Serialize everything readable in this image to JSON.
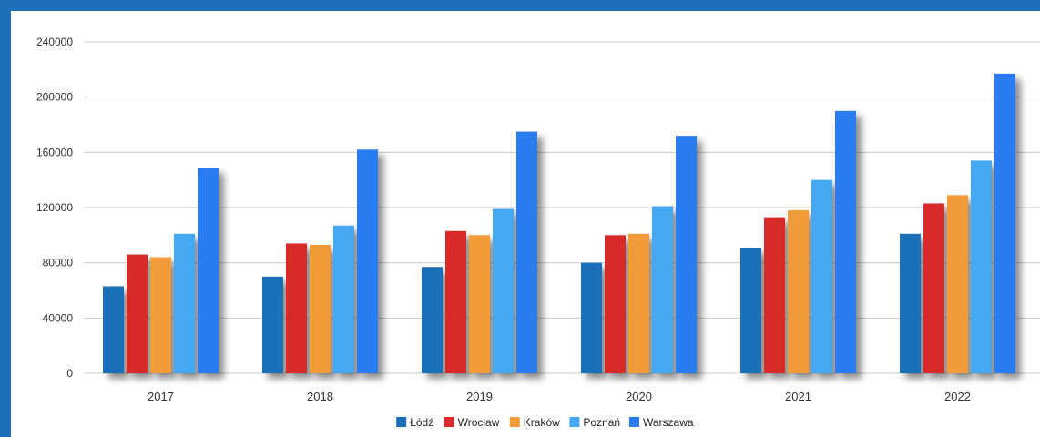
{
  "chart_data": {
    "type": "bar",
    "categories": [
      "2017",
      "2018",
      "2019",
      "2020",
      "2021",
      "2022"
    ],
    "series": [
      {
        "name": "Łódź",
        "color": "#1a6fb7",
        "values": [
          63000,
          70000,
          77000,
          80000,
          91000,
          101000
        ]
      },
      {
        "name": "Wrocław",
        "color": "#d92b2b",
        "values": [
          86000,
          94000,
          103000,
          100000,
          113000,
          123000
        ]
      },
      {
        "name": "Kraków",
        "color": "#f29b38",
        "values": [
          84000,
          93000,
          100000,
          101000,
          118000,
          129000
        ]
      },
      {
        "name": "Poznań",
        "color": "#45a8f2",
        "values": [
          101000,
          107000,
          119000,
          121000,
          140000,
          154000
        ]
      },
      {
        "name": "Warszawa",
        "color": "#2b7bf0",
        "values": [
          149000,
          162000,
          175000,
          172000,
          190000,
          217000
        ]
      }
    ],
    "yticks": [
      "0",
      "40000",
      "80000",
      "120000",
      "160000",
      "200000",
      "240000"
    ],
    "ylim": [
      0,
      240000
    ],
    "grid": true,
    "legend_position": "bottom"
  }
}
